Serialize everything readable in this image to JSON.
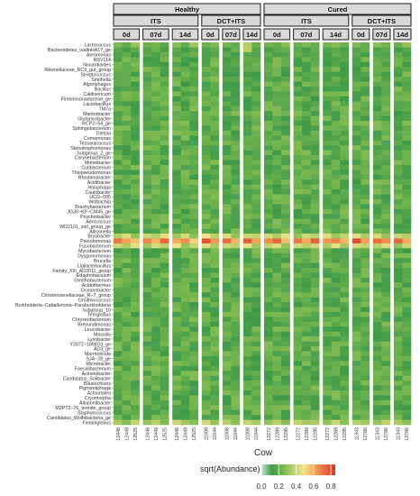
{
  "chart_data": {
    "type": "heatmap",
    "xlabel": "Cow",
    "legend": {
      "title": "sqrt(Abundance)",
      "ticks": [
        "0.0",
        "0.2",
        "0.4",
        "0.6",
        "0.8"
      ],
      "range": [
        0,
        0.85
      ],
      "colors": [
        "#c8e8d8",
        "#3f9a47",
        "#74b64f",
        "#b9d26a",
        "#f3e38a",
        "#f5a95b",
        "#e86b3f",
        "#d33a2c"
      ]
    },
    "strips": {
      "groups": [
        {
          "label": "Healthy",
          "span": [
            0,
            15
          ]
        },
        {
          "label": "Cured",
          "span": [
            15,
            30
          ]
        }
      ],
      "treatments": [
        {
          "label": "ITS",
          "span": [
            0,
            9
          ]
        },
        {
          "label": "DCT+ITS",
          "span": [
            9,
            15
          ]
        },
        {
          "label": "ITS",
          "span": [
            15,
            24
          ]
        },
        {
          "label": "DCT+ITS",
          "span": [
            24,
            30
          ]
        }
      ],
      "timepoints": [
        {
          "label": "0d",
          "span": [
            0,
            3
          ]
        },
        {
          "label": "07d",
          "span": [
            3,
            6
          ]
        },
        {
          "label": "14d",
          "span": [
            6,
            9
          ]
        },
        {
          "label": "0d",
          "span": [
            9,
            11
          ]
        },
        {
          "label": "07d",
          "span": [
            11,
            13
          ]
        },
        {
          "label": "14d",
          "span": [
            13,
            15
          ]
        },
        {
          "label": "0d",
          "span": [
            15,
            18
          ]
        },
        {
          "label": "07d",
          "span": [
            18,
            21
          ]
        },
        {
          "label": "14d",
          "span": [
            21,
            24
          ]
        },
        {
          "label": "0d",
          "span": [
            24,
            26
          ]
        },
        {
          "label": "07d",
          "span": [
            26,
            28
          ]
        },
        {
          "label": "14d",
          "span": [
            28,
            30
          ]
        }
      ]
    },
    "columns": [
      "12448",
      "12449",
      "12525",
      "12448",
      "12449",
      "12525",
      "12448",
      "12449",
      "12525",
      "11008",
      "11044",
      "11008",
      "11044",
      "11008",
      "11044",
      "12272",
      "12289",
      "12295",
      "12272",
      "12289",
      "12295",
      "12272",
      "12289",
      "12295",
      "11343",
      "12786",
      "11343",
      "12786",
      "11343",
      "12786"
    ],
    "rows": [
      "Lactococcus",
      "Bacteroidetes_vadinHA17_ge",
      "Aeromonas",
      "RSV114",
      "Nocardioides",
      "Rikenellaceae_RC9_gut_group",
      "Streptococcus",
      "Smithella",
      "Algoriphagus",
      "Bacillus",
      "Caldisericum",
      "Fimbriimonadaceae_ge",
      "Lactobacillus",
      "TM7a",
      "Marinobacter",
      "Glutamicibacter",
      "RCP2−54_ge",
      "Sphingobacterium",
      "Dietzia",
      "Comamonas",
      "Tessaracoccus",
      "Stenotrophomonas",
      "Subgroup_2_ge",
      "Corynebacterium",
      "Moheibacter",
      "Cutibacterium",
      "Thiopseudomonas",
      "Rhodanobacter",
      "Acidibacter",
      "Holophaga",
      "Caulobacter",
      "UCG−005",
      "Wolbachia",
      "Brachybacterium",
      "JG30−KF−CM45_ge",
      "Psychrobacter",
      "Aerococcus",
      "WD2101_soil_group_ge",
      "Allisonella",
      "Bryobacter",
      "Pseudomonas",
      "Fusobacterium",
      "Mycobacterium",
      "Dysgonomonas",
      "Brucella",
      "Ligilactobacillus",
      "Family_XIII_AD3011_group",
      "Edaphobaculum",
      "Ornithobacterium",
      "Acidothermus",
      "Oceanobacter",
      "Christensenellaceae_R−7_group",
      "Ornithinicoccus",
      "Burkholderia−Caballeronia−Paraburkholderia",
      "Subgroup_10",
      "Terriglobus",
      "Chryseobacterium",
      "Brevundimonas",
      "Leucobacter",
      "Massilia",
      "Lysobacter",
      "Y2072−189E03_ge",
      "AD3_ge",
      "Marmoricola",
      "SJA−28_ge",
      "Microbacter",
      "Faecalibacterium",
      "Acinetobacter",
      "Candidatus_Solibacter",
      "Blastochloris",
      "Pigmentiphaga",
      "Actinotalea",
      "Cryomorpha",
      "Allopontibacter",
      "M2PT2−76_termite_group",
      "Staphylococcus",
      "Candidatus_Wolfebacteria_ge",
      "Fimbriiglobus"
    ],
    "values": [
      [
        0.22,
        0.18,
        0.15,
        0.24,
        0.2,
        0.18,
        0.16,
        0.21,
        0.26,
        0.14,
        0.19,
        0.23,
        0.17,
        0.3,
        0.21,
        0.16,
        0.2,
        0.24,
        0.15,
        0.18,
        0.22,
        0.19,
        0.17,
        0.21,
        0.2,
        0.16,
        0.23,
        0.18,
        0.21,
        0.19
      ],
      [
        0.18,
        0.14,
        0.2,
        0.17,
        0.22,
        0.15,
        0.19,
        0.13,
        0.18,
        0.16,
        0.2,
        0.14,
        0.22,
        0.36,
        0.17,
        0.15,
        0.19,
        0.21,
        0.18,
        0.14,
        0.2,
        0.16,
        0.19,
        0.15,
        0.17,
        0.21,
        0.16,
        0.19,
        0.14,
        0.18
      ],
      [
        0.16,
        0.2,
        0.14,
        0.18,
        0.15,
        0.21,
        0.17,
        0.19,
        0.22,
        0.15,
        0.17,
        0.19,
        0.14,
        0.18,
        0.16,
        0.2,
        0.15,
        0.17,
        0.21,
        0.16,
        0.18,
        0.14,
        0.2,
        0.17,
        0.19,
        0.15,
        0.18,
        0.16,
        0.2,
        0.14
      ]
    ],
    "default_value": 0.18,
    "highlights": [
      {
        "row": "Pseudomonas",
        "values": [
          0.7,
          0.62,
          0.55,
          0.68,
          0.58,
          0.74,
          0.6,
          0.66,
          0.52,
          0.78,
          0.64,
          0.72,
          0.58,
          0.76,
          0.62,
          0.66,
          0.74,
          0.56,
          0.7,
          0.6,
          0.76,
          0.64,
          0.68,
          0.58,
          0.8,
          0.62,
          0.72,
          0.66,
          0.74,
          0.6
        ]
      },
      {
        "row": "Bryobacter",
        "values": [
          0.36,
          0.44,
          0.3,
          0.4,
          0.34,
          0.46,
          0.32,
          0.42,
          0.28,
          0.48,
          0.36,
          0.44,
          0.3,
          0.4,
          0.38,
          0.42,
          0.34,
          0.46,
          0.3,
          0.4,
          0.36,
          0.44,
          0.32,
          0.38,
          0.46,
          0.34,
          0.42,
          0.3,
          0.4,
          0.36
        ]
      },
      {
        "row": "Fusobacterium",
        "values": [
          0.4,
          0.34,
          0.46,
          0.32,
          0.42,
          0.36,
          0.48,
          0.3,
          0.38,
          0.44,
          0.34,
          0.4,
          0.36,
          0.46,
          0.32,
          0.38,
          0.44,
          0.3,
          0.42,
          0.36,
          0.4,
          0.34,
          0.46,
          0.32,
          0.42,
          0.38,
          0.36,
          0.44,
          0.3,
          0.4
        ]
      },
      {
        "row": "Fimbriiglobus",
        "values": [
          0.34,
          0.28,
          0.38,
          0.3,
          0.36,
          0.26,
          0.4,
          0.32,
          0.28,
          0.42,
          0.3,
          0.36,
          0.28,
          0.38,
          0.34,
          0.3,
          0.36,
          0.28,
          0.38,
          0.32,
          0.34,
          0.3,
          0.4,
          0.28,
          0.36,
          0.32,
          0.3,
          0.38,
          0.34,
          0.28
        ]
      },
      {
        "row": "Lactococcus",
        "values": [
          0.26,
          0.2,
          0.3,
          0.22,
          0.24,
          0.18,
          0.28,
          0.2,
          0.32,
          0.22,
          0.26,
          0.24,
          0.2,
          0.34,
          0.22,
          0.24,
          0.2,
          0.28,
          0.22,
          0.26,
          0.2,
          0.24,
          0.28,
          0.22,
          0.26,
          0.2,
          0.28,
          0.24,
          0.22,
          0.3
        ]
      }
    ]
  }
}
